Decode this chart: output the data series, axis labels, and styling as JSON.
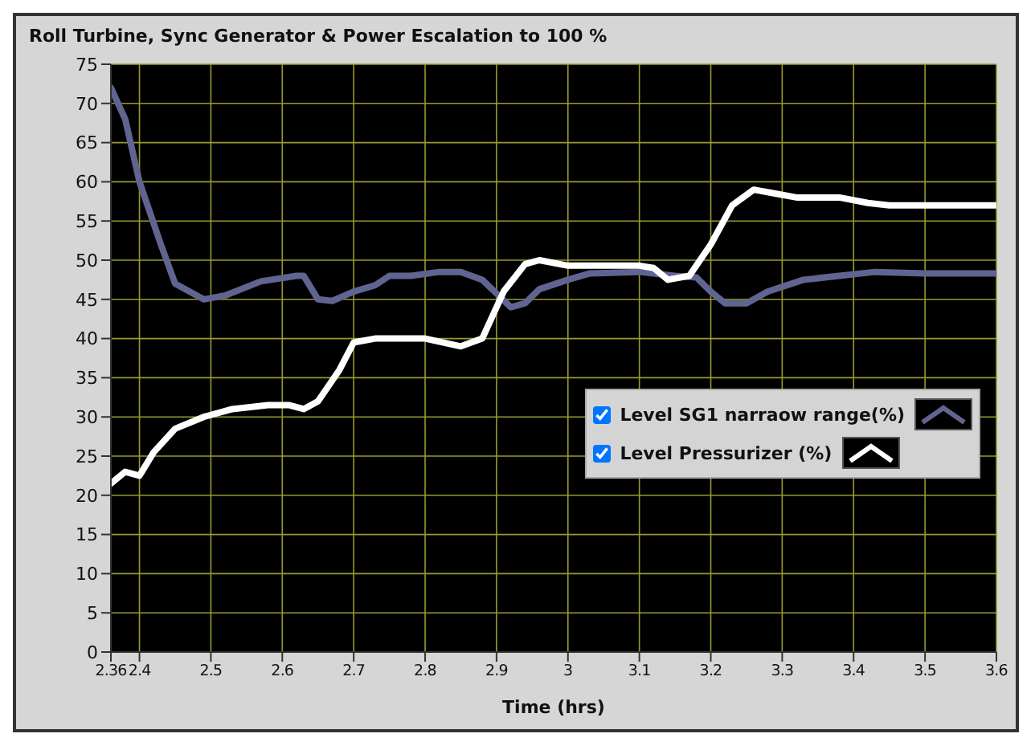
{
  "chart_data": {
    "type": "line",
    "title": "Roll Turbine, Sync Generator & Power Escalation to 100 %",
    "xlabel": "Time (hrs)",
    "xlim": [
      2.36,
      3.6
    ],
    "xticks": [
      2.36,
      2.4,
      2.5,
      2.6,
      2.7,
      2.8,
      2.9,
      3,
      3.1,
      3.2,
      3.3,
      3.4,
      3.5,
      3.6
    ],
    "ylim": [
      0,
      75
    ],
    "yticks": [
      0,
      5,
      10,
      15,
      20,
      25,
      30,
      35,
      40,
      45,
      50,
      55,
      60,
      65,
      70,
      75
    ],
    "grid": true,
    "legend": "right",
    "line_style": "solid",
    "marker": "none",
    "series": [
      {
        "name": "Level SG1 narraow range(%)",
        "color": "#5f6590",
        "x": [
          2.36,
          2.38,
          2.4,
          2.43,
          2.45,
          2.49,
          2.52,
          2.57,
          2.62,
          2.63,
          2.65,
          2.67,
          2.7,
          2.73,
          2.75,
          2.78,
          2.82,
          2.85,
          2.88,
          2.92,
          2.94,
          2.96,
          3,
          3.03,
          3.1,
          3.15,
          3.18,
          3.2,
          3.22,
          3.25,
          3.28,
          3.33,
          3.38,
          3.43,
          3.5,
          3.6
        ],
        "values": [
          72,
          68,
          60,
          52,
          47,
          45,
          45.5,
          47.3,
          48,
          48,
          45,
          44.8,
          46,
          46.8,
          48,
          48,
          48.5,
          48.5,
          47.5,
          44,
          44.5,
          46.3,
          47.5,
          48.3,
          48.5,
          48,
          47.8,
          46,
          44.5,
          44.5,
          46,
          47.5,
          48,
          48.5,
          48.3,
          48.3
        ]
      },
      {
        "name": "Level Pressurizer (%)",
        "color": "#ffffff",
        "x": [
          2.36,
          2.38,
          2.4,
          2.42,
          2.45,
          2.49,
          2.53,
          2.58,
          2.61,
          2.63,
          2.65,
          2.68,
          2.7,
          2.73,
          2.8,
          2.85,
          2.88,
          2.91,
          2.94,
          2.96,
          3,
          3.1,
          3.12,
          3.14,
          3.17,
          3.2,
          3.23,
          3.26,
          3.29,
          3.32,
          3.38,
          3.42,
          3.45,
          3.6
        ],
        "values": [
          21.5,
          23,
          22.5,
          25.5,
          28.5,
          30,
          31,
          31.5,
          31.5,
          31,
          32,
          36,
          39.5,
          40,
          40,
          39,
          40,
          46,
          49.5,
          50,
          49.3,
          49.3,
          49,
          47.5,
          48,
          52,
          57,
          59,
          58.5,
          58,
          58,
          57.3,
          57,
          57
        ]
      }
    ]
  }
}
